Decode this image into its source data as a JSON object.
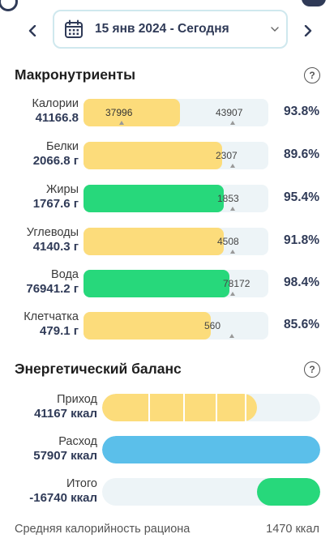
{
  "header": {
    "date_range": "15 янв 2024 - Сегодня"
  },
  "macros": {
    "title": "Макронутриенты",
    "help": "?",
    "rows": [
      {
        "name": "Калории",
        "value": "41166.8",
        "in_bar": "37996",
        "target": "43907",
        "pct": "93.8%",
        "color": "#fcdc7b",
        "fill": 0.52
      },
      {
        "name": "Белки",
        "value": "2066.8 г",
        "in_bar": "",
        "target": "2307",
        "pct": "89.6%",
        "color": "#fcdc7b",
        "fill": 0.75
      },
      {
        "name": "Жиры",
        "value": "1767.6 г",
        "in_bar": "",
        "target": "1853",
        "pct": "95.4%",
        "color": "#27d87b",
        "fill": 0.76
      },
      {
        "name": "Углеводы",
        "value": "4140.3 г",
        "in_bar": "",
        "target": "4508",
        "pct": "91.8%",
        "color": "#fcdc7b",
        "fill": 0.76
      },
      {
        "name": "Вода",
        "value": "76941.2 г",
        "in_bar": "",
        "target": "78172",
        "pct": "98.4%",
        "color": "#27d87b",
        "fill": 0.79
      },
      {
        "name": "Клетчатка",
        "value": "479.1 г",
        "in_bar": "",
        "target": "560",
        "pct": "85.6%",
        "color": "#fcdc7b",
        "fill": 0.69
      }
    ]
  },
  "energy": {
    "title": "Энергетический баланс",
    "help": "?",
    "rows": [
      {
        "name": "Приход",
        "value": "41167 ккал",
        "color": "#fcdc7b"
      },
      {
        "name": "Расход",
        "value": "57907 ккал",
        "color": "#5bbfea"
      },
      {
        "name": "Итого",
        "value": "-16740 ккал",
        "color": "#27d87b"
      }
    ]
  },
  "average": {
    "label": "Средняя калорийность рациона",
    "value": "1470 ккал"
  },
  "colors": {
    "accent": "#2f3a57",
    "yellow": "#fcdc7b",
    "green": "#27d87b",
    "blue": "#5bbfea",
    "track": "#edf4f7"
  }
}
